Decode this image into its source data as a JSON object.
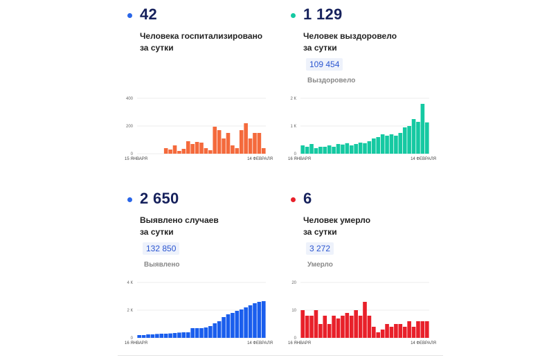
{
  "panels": [
    {
      "value": "42",
      "line1": "Человека госпитализировано",
      "line2": "за сутки",
      "chip": "",
      "sub": "",
      "dot_color": "#2a66e8"
    },
    {
      "value": "1 129",
      "line1": "Человек выздоровело",
      "line2": "за сутки",
      "chip": "109 454",
      "sub": "Выздоровело",
      "dot_color": "#15c9a2"
    },
    {
      "value": "2 650",
      "line1": "Выявлено случаев",
      "line2": "за сутки",
      "chip": "132 850",
      "sub": "Выявлено",
      "dot_color": "#2a66e8"
    },
    {
      "value": "6",
      "line1": "Человек умерло",
      "line2": "за сутки",
      "chip": "3 272",
      "sub": "Умерло",
      "dot_color": "#e8202a"
    }
  ],
  "chart_data": [
    {
      "type": "bar",
      "color": "#f46a3c",
      "xstart": "15 ЯНВАРЯ",
      "xend": "14 ФЕВРАЛЯ",
      "yticks": [
        "0",
        "200",
        "400"
      ],
      "ylim": [
        0,
        400
      ],
      "values": [
        null,
        null,
        null,
        null,
        null,
        null,
        40,
        30,
        60,
        20,
        35,
        90,
        70,
        85,
        80,
        40,
        25,
        195,
        170,
        110,
        150,
        60,
        40,
        170,
        220,
        110,
        150,
        150,
        40
      ]
    },
    {
      "type": "bar",
      "color": "#15c9a2",
      "xstart": "16 ЯНВАРЯ",
      "xend": "14 ФЕВРАЛЯ",
      "yticks": [
        "0",
        "1 К",
        "2 К"
      ],
      "ylim": [
        0,
        2000
      ],
      "values": [
        300,
        250,
        350,
        200,
        250,
        250,
        300,
        250,
        350,
        330,
        380,
        300,
        350,
        400,
        380,
        450,
        550,
        600,
        700,
        650,
        700,
        650,
        750,
        950,
        1000,
        1250,
        1150,
        1800,
        1130
      ]
    },
    {
      "type": "bar",
      "color": "#1a5eed",
      "xstart": "16 ЯНВАРЯ",
      "xend": "14 ФЕВРАЛЯ",
      "yticks": [
        "0",
        "2 К",
        "4 К"
      ],
      "ylim": [
        0,
        4000
      ],
      "values": [
        200,
        200,
        250,
        250,
        280,
        300,
        300,
        320,
        350,
        380,
        400,
        400,
        700,
        700,
        700,
        750,
        850,
        1050,
        1200,
        1500,
        1700,
        1800,
        1950,
        2050,
        2200,
        2350,
        2500,
        2600,
        2650
      ]
    },
    {
      "type": "bar",
      "color": "#e8202a",
      "xstart": "16 ЯНВАРЯ",
      "xend": "14 ФЕВРАЛЯ",
      "yticks": [
        "0",
        "10",
        "20"
      ],
      "ylim": [
        0,
        20
      ],
      "values": [
        10,
        8,
        8,
        10,
        5,
        8,
        5,
        8,
        7,
        8,
        9,
        8,
        10,
        8,
        13,
        8,
        4,
        2,
        3,
        5,
        4,
        5,
        5,
        4,
        6,
        4,
        6,
        6,
        6
      ]
    }
  ]
}
